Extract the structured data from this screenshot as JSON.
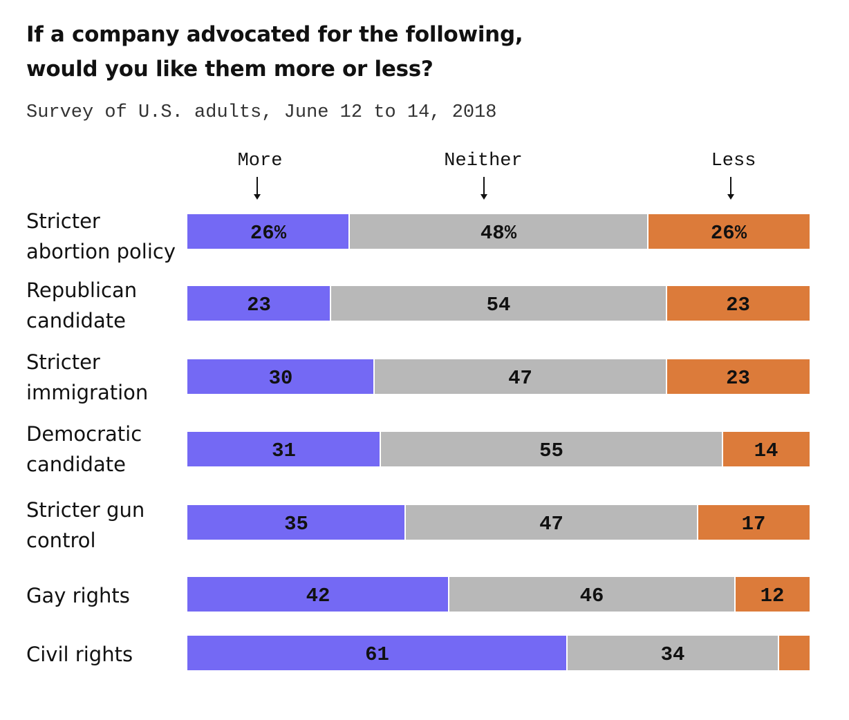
{
  "chart_data": {
    "type": "bar",
    "orientation": "horizontal",
    "stacked": true,
    "title_lines": [
      "If a company advocated for the following,",
      "would you like them more or less?"
    ],
    "subtitle": "Survey of U.S. adults, June 12 to 14, 2018",
    "categories": [
      [
        "Stricter",
        "abortion policy"
      ],
      [
        "Republican",
        "candidate"
      ],
      [
        "Stricter",
        "immigration"
      ],
      [
        "Democratic",
        "candidate"
      ],
      [
        "Stricter gun",
        "control"
      ],
      [
        "Gay rights"
      ],
      [
        "Civil rights"
      ]
    ],
    "series": [
      {
        "name": "More",
        "color": "#7469f4",
        "values": [
          26,
          23,
          30,
          31,
          35,
          42,
          61
        ]
      },
      {
        "name": "Neither",
        "color": "#b8b8b8",
        "values": [
          48,
          54,
          47,
          55,
          47,
          46,
          34
        ]
      },
      {
        "name": "Less",
        "color": "#dc7b3a",
        "values": [
          26,
          23,
          23,
          14,
          17,
          12,
          5
        ]
      }
    ],
    "value_labels": [
      [
        "26%",
        "48%",
        "26%"
      ],
      [
        "23",
        "54",
        "23"
      ],
      [
        "30",
        "47",
        "23"
      ],
      [
        "31",
        "55",
        "14"
      ],
      [
        "35",
        "47",
        "17"
      ],
      [
        "42",
        "46",
        "12"
      ],
      [
        "61",
        "34",
        ""
      ]
    ],
    "legend_position": "top",
    "grid": false
  }
}
